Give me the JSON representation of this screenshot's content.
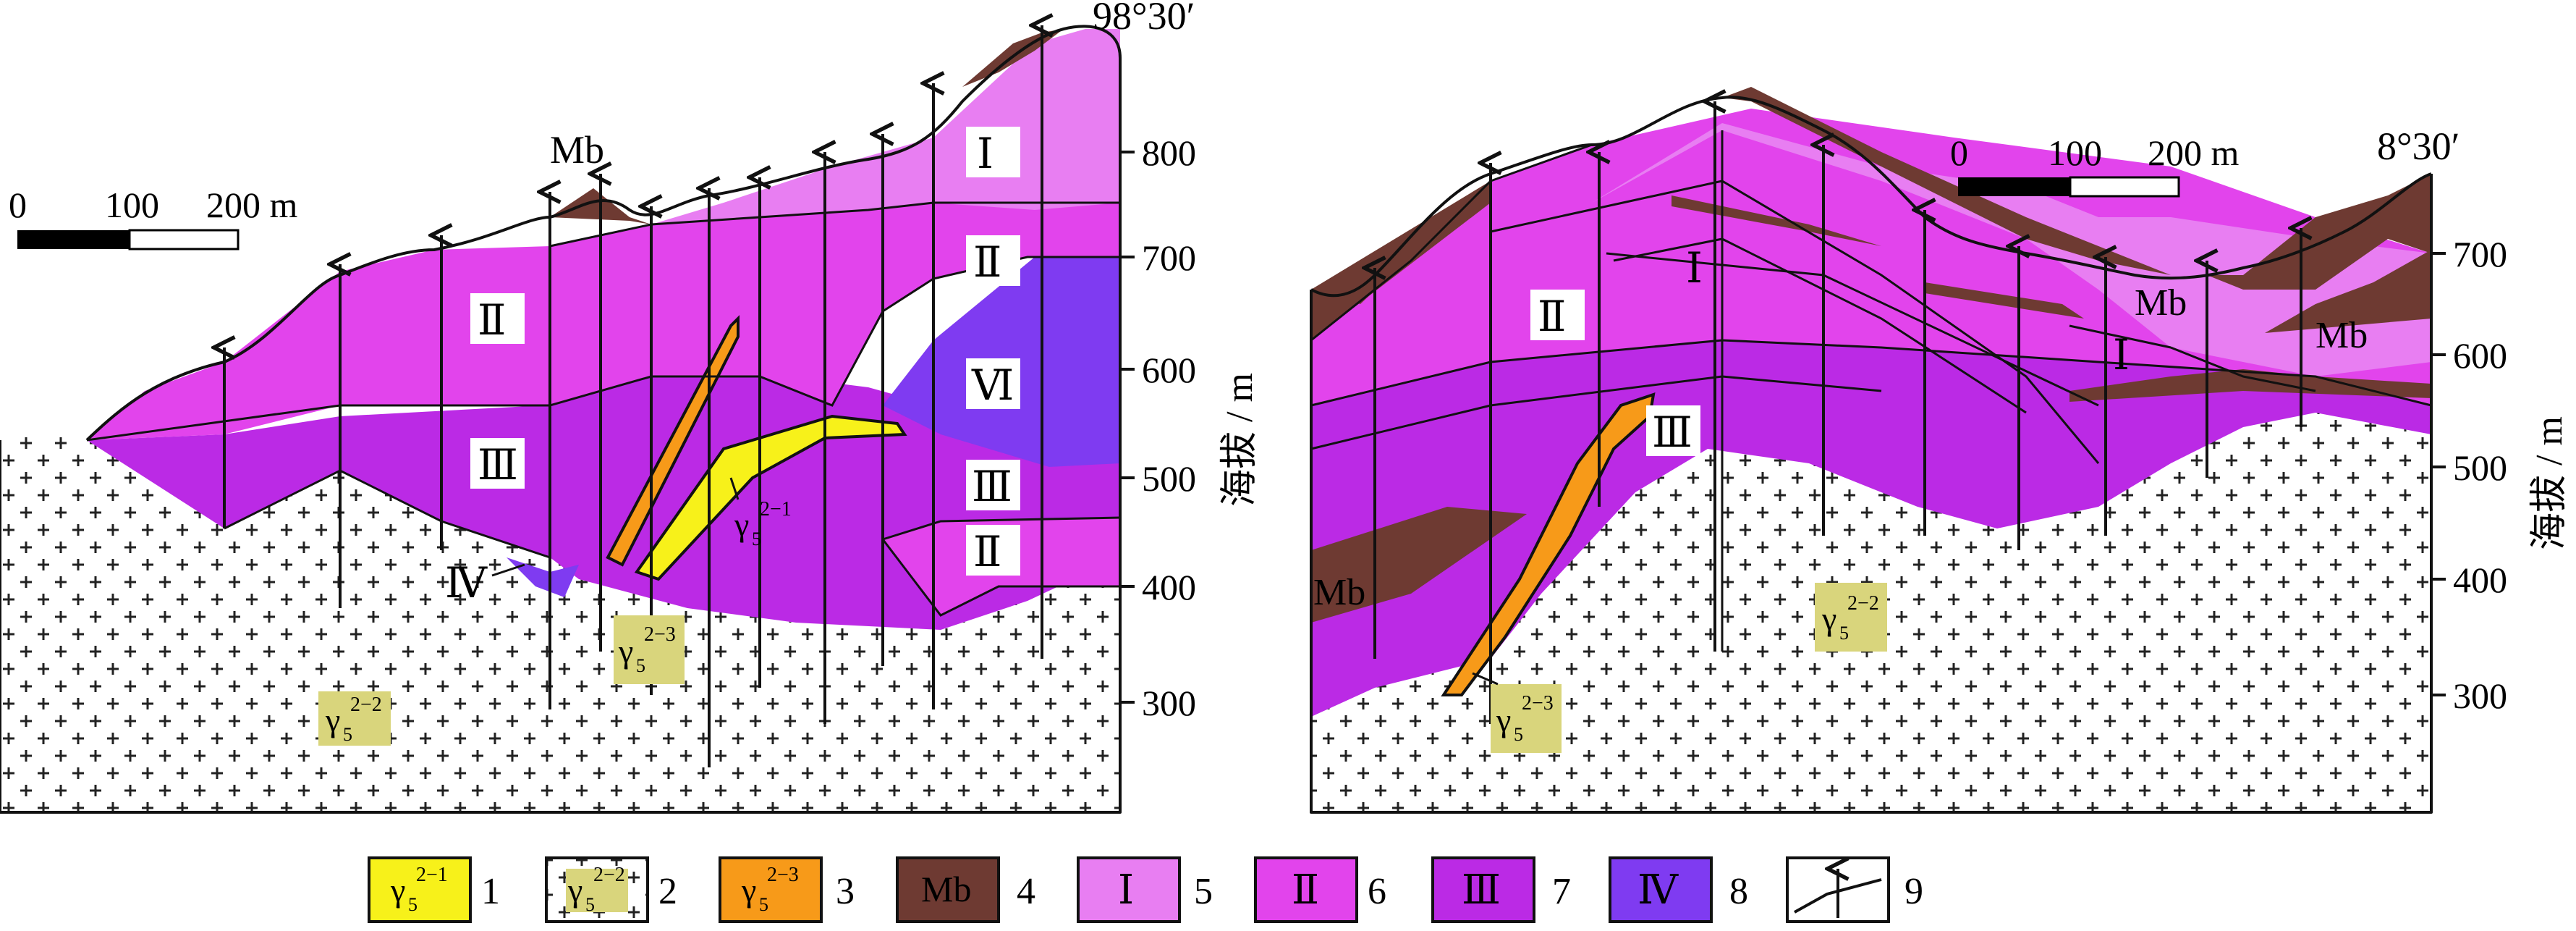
{
  "colors": {
    "unit_I": "#e87ef2",
    "unit_II": "#e244ec",
    "unit_III": "#bb2ae5",
    "unit_IV": "#7f3bf1",
    "marble": "#6e3a32",
    "granite_early": "#f7f11a",
    "granite_bg": "#ffffff",
    "granite_late": "#f79a19",
    "label_box": "#d9d57c"
  },
  "left_section": {
    "longitude_label": "98°30′",
    "scale": {
      "zero": "0",
      "mid": "100",
      "end": "200 m"
    },
    "elev_axis": {
      "title": "海拔 / m",
      "ticks": [
        "800",
        "700",
        "600",
        "500",
        "400",
        "300"
      ]
    },
    "unit_labels": {
      "I": "Ⅰ",
      "II_top": "Ⅱ",
      "II_left": "Ⅱ",
      "III_left": "Ⅲ",
      "VI": "Ⅵ",
      "III_right": "Ⅲ",
      "II_low": "Ⅱ",
      "IV": "Ⅳ",
      "Mb": "Mb"
    },
    "granite_labels": {
      "g22_base": "γ",
      "g22_sub": "5",
      "g22_sup": "2−2",
      "g23_base": "γ",
      "g23_sub": "5",
      "g23_sup": "2−3",
      "g21_base": "γ",
      "g21_sub": "5",
      "g21_sup": "2−1"
    }
  },
  "right_section": {
    "longitude_label": "8°30′",
    "scale": {
      "zero": "0",
      "mid": "100",
      "end": "200 m"
    },
    "elev_axis": {
      "title": "海拔 / m",
      "ticks": [
        "700",
        "600",
        "500",
        "400",
        "300"
      ]
    },
    "unit_labels": {
      "II": "Ⅱ",
      "I_top": "Ⅰ",
      "III": "Ⅲ",
      "Mb_left": "Mb",
      "Mb_top": "Mb",
      "Mb_right": "Mb",
      "I_right": "Ⅰ"
    },
    "granite_labels": {
      "g22_base": "γ",
      "g22_sub": "5",
      "g22_sup": "2−2",
      "g23_base": "γ",
      "g23_sub": "5",
      "g23_sup": "2−3"
    }
  },
  "legend": [
    {
      "num": "1",
      "base": "γ",
      "sub": "5",
      "sup": "2−1"
    },
    {
      "num": "2",
      "base": "γ",
      "sub": "5",
      "sup": "2−2"
    },
    {
      "num": "3",
      "base": "γ",
      "sub": "5",
      "sup": "2−3"
    },
    {
      "num": "4",
      "text": "Mb"
    },
    {
      "num": "5",
      "text": "Ⅰ"
    },
    {
      "num": "6",
      "text": "Ⅱ"
    },
    {
      "num": "7",
      "text": "Ⅲ"
    },
    {
      "num": "8",
      "text": "Ⅳ"
    },
    {
      "num": "9"
    }
  ]
}
